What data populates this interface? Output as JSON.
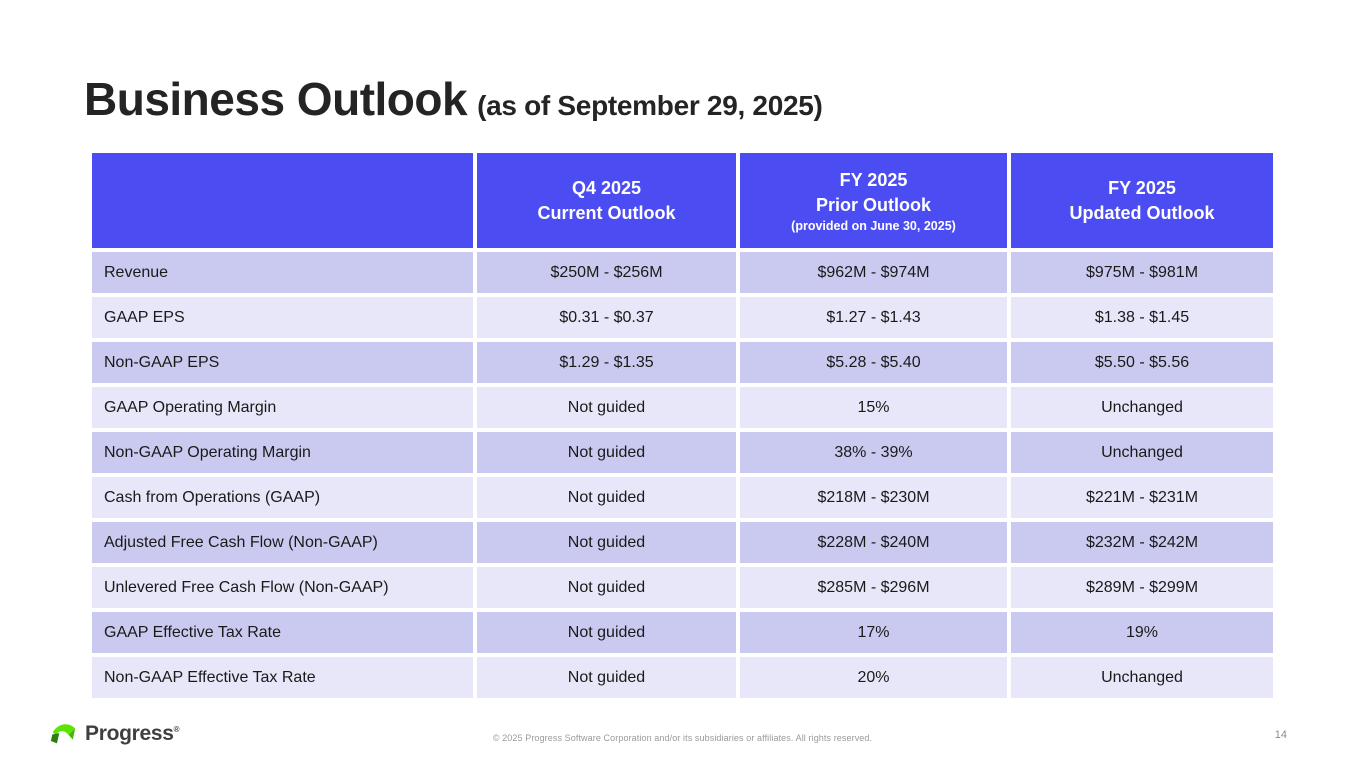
{
  "slide": {
    "title": "Business Outlook",
    "subtitle": "(as of September 29, 2025)",
    "page_number": "14",
    "footer_copyright": "© 2025 Progress Software Corporation and/or its subsidiaries or affiliates. All rights reserved.",
    "logo_text": "Progress",
    "logo_trademark": "®"
  },
  "colors": {
    "header_bg": "#4b4df2",
    "row_dark": "#cacaf0",
    "row_light": "#e7e7f9",
    "logo_green_bright": "#5ce500",
    "logo_green_mid": "#47b400",
    "logo_green_dark": "#2e7d0f",
    "title_text": "#242424"
  },
  "table": {
    "header": [
      {
        "line1": "",
        "line2": "",
        "note": ""
      },
      {
        "line1": "Q4 2025",
        "line2": "Current Outlook",
        "note": ""
      },
      {
        "line1": "FY 2025",
        "line2": "Prior Outlook",
        "note": "(provided on June 30, 2025)"
      },
      {
        "line1": "FY 2025",
        "line2": "Updated Outlook",
        "note": ""
      }
    ],
    "rows": [
      {
        "label": "Revenue",
        "values": [
          "$250M - $256M",
          "$962M - $974M",
          "$975M - $981M"
        ]
      },
      {
        "label": "GAAP EPS",
        "values": [
          "$0.31 - $0.37",
          "$1.27 - $1.43",
          "$1.38 - $1.45"
        ]
      },
      {
        "label": "Non-GAAP EPS",
        "values": [
          "$1.29 - $1.35",
          "$5.28 - $5.40",
          "$5.50 - $5.56"
        ]
      },
      {
        "label": "GAAP Operating Margin",
        "values": [
          "Not guided",
          "15%",
          "Unchanged"
        ]
      },
      {
        "label": "Non-GAAP Operating Margin",
        "values": [
          "Not guided",
          "38% - 39%",
          "Unchanged"
        ]
      },
      {
        "label": "Cash from Operations (GAAP)",
        "values": [
          "Not guided",
          "$218M - $230M",
          "$221M - $231M"
        ]
      },
      {
        "label": "Adjusted Free Cash Flow (Non-GAAP)",
        "values": [
          "Not guided",
          "$228M - $240M",
          "$232M - $242M"
        ]
      },
      {
        "label": "Unlevered Free Cash Flow (Non-GAAP)",
        "values": [
          "Not guided",
          "$285M - $296M",
          "$289M - $299M"
        ]
      },
      {
        "label": "GAAP Effective Tax Rate",
        "values": [
          "Not guided",
          "17%",
          "19%"
        ]
      },
      {
        "label": "Non-GAAP Effective Tax Rate",
        "values": [
          "Not guided",
          "20%",
          "Unchanged"
        ]
      }
    ]
  }
}
